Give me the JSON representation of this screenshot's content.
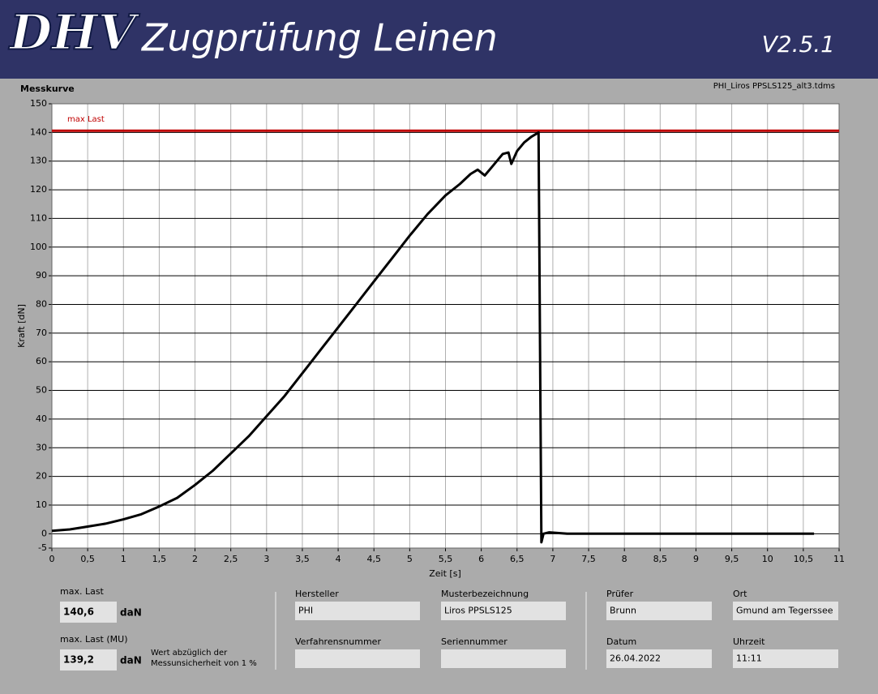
{
  "header": {
    "logo": "DHV",
    "title": "Zugprüfung Leinen",
    "version": "V2.5.1"
  },
  "chart_data": {
    "type": "line",
    "title": "Messkurve",
    "file": "PHI_Liros PPSLS125_alt3.tdms",
    "x_label": "Zeit [s]",
    "y_label": "Kraft [dN]",
    "x": [
      0,
      0.25,
      0.5,
      0.75,
      1,
      1.25,
      1.5,
      1.75,
      2,
      2.25,
      2.5,
      2.75,
      3,
      3.25,
      3.5,
      3.75,
      4,
      4.25,
      4.5,
      4.75,
      5,
      5.25,
      5.5,
      5.7,
      5.85,
      5.95,
      6.05,
      6.15,
      6.3,
      6.38,
      6.42,
      6.5,
      6.6,
      6.7,
      6.8,
      6.82,
      6.84,
      6.87,
      6.95,
      7.2,
      7.5,
      8,
      8.5,
      9,
      9.5,
      10,
      10.65
    ],
    "values": [
      1,
      1.5,
      2.5,
      3.5,
      5,
      6.8,
      9.5,
      12.5,
      17,
      22,
      28,
      34,
      41,
      48,
      56,
      64,
      72,
      80,
      88,
      96,
      104,
      111.5,
      118,
      122,
      125.5,
      127,
      125,
      128,
      132.5,
      133,
      129,
      133.5,
      136.5,
      138.5,
      140,
      70,
      -3,
      0,
      0.5,
      0,
      0,
      0,
      0,
      0,
      0,
      0,
      0
    ],
    "color": "#000000",
    "max_line": {
      "label": "max Last",
      "color": "#c00000"
    },
    "xlim": [
      0,
      11
    ],
    "xticks": [
      0,
      {
        "value": 0.5,
        "label": "0,5"
      },
      1,
      {
        "value": 1.5,
        "label": "1,5"
      },
      2,
      {
        "value": 2.5,
        "label": "2,5"
      },
      3,
      {
        "value": 3.5,
        "label": "3,5"
      },
      4,
      {
        "value": 4.5,
        "label": "4,5"
      },
      5,
      {
        "value": 5.5,
        "label": "5,5"
      },
      6,
      {
        "value": 6.5,
        "label": "6,5"
      },
      7,
      {
        "value": 7.5,
        "label": "7,5"
      },
      8,
      {
        "value": 8.5,
        "label": "8,5"
      },
      9,
      {
        "value": 9.5,
        "label": "9,5"
      },
      10,
      {
        "value": 10.5,
        "label": "10,5"
      },
      11
    ],
    "ylim": [
      -5,
      150
    ],
    "yticks": [
      -5,
      0,
      10,
      20,
      30,
      40,
      50,
      60,
      70,
      80,
      90,
      100,
      110,
      120,
      130,
      140,
      150
    ],
    "grid": true
  },
  "panel": {
    "max_last": {
      "label": "max. Last",
      "value": {
        "value": 140.6,
        "label": "140,6"
      },
      "unit": "daN"
    },
    "max_last_mu": {
      "label": "max. Last (MU)",
      "value": {
        "value": 139.2,
        "label": "139,2"
      },
      "unit": "daN",
      "note": [
        "Wert abzüglich der",
        "Messunsicherheit von 1 %"
      ]
    },
    "fields": [
      {
        "label": "Hersteller",
        "value": "PHI"
      },
      {
        "label": "Musterbezeichnung",
        "value": "Liros PPSLS125"
      },
      {
        "label": "Verfahrensnummer"
      },
      {
        "label": "Seriennummer"
      },
      {
        "label": "Prüfer",
        "value": "Brunn"
      },
      {
        "label": "Ort",
        "value": "Gmund am Tegerssee"
      },
      {
        "label": "Datum",
        "value": "26.04.2022"
      },
      {
        "label": "Uhrzeit",
        "value": "11:11"
      }
    ]
  }
}
